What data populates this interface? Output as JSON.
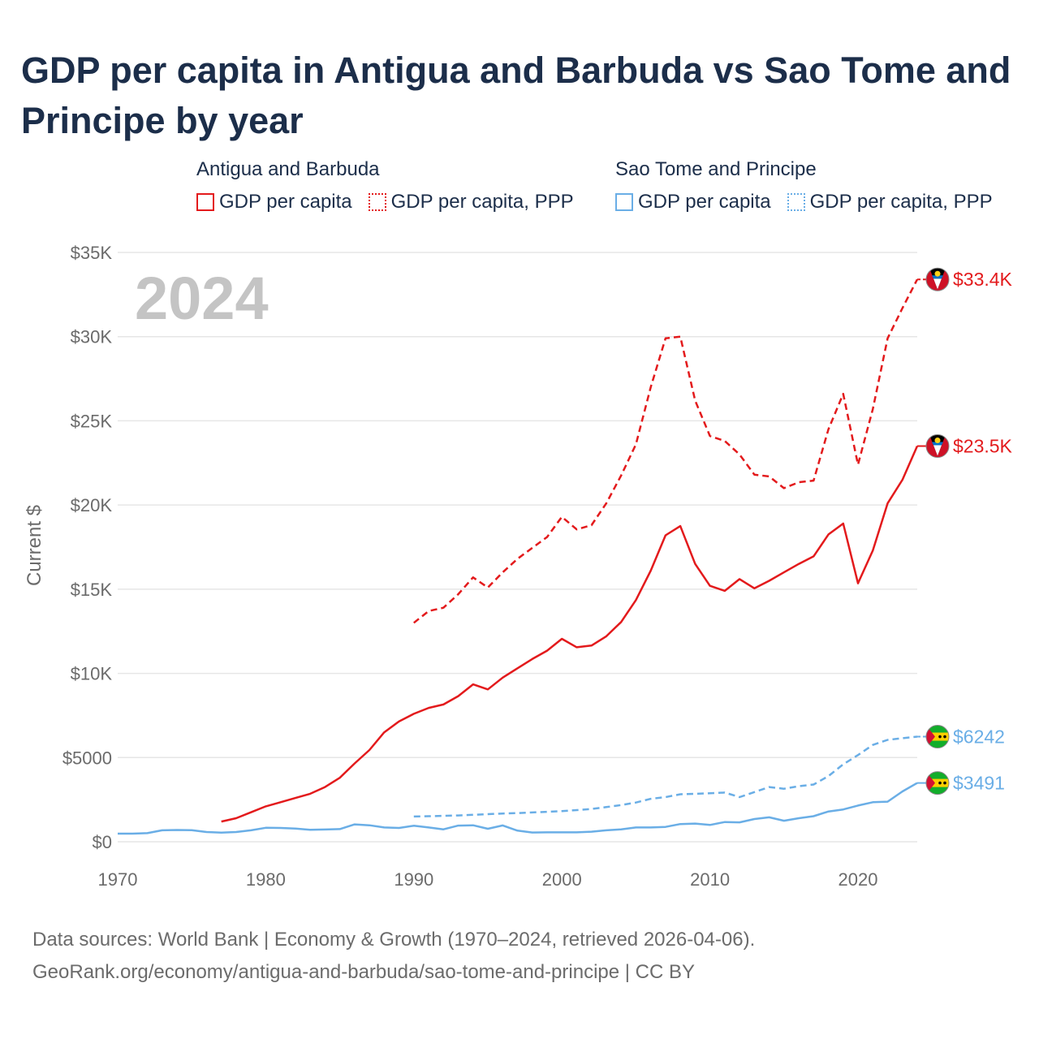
{
  "title": "GDP per capita in Antigua and Barbuda vs Sao Tome and Principe by year",
  "legend": [
    {
      "group": "Antigua and Barbuda",
      "items": [
        {
          "label": "GDP per capita",
          "style": "solid",
          "color": "#e31a1c"
        },
        {
          "label": "GDP per capita, PPP",
          "style": "dotted",
          "color": "#e31a1c"
        }
      ]
    },
    {
      "group": "Sao Tome and Principe",
      "items": [
        {
          "label": "GDP per capita",
          "style": "solid",
          "color": "#6aaee6"
        },
        {
          "label": "GDP per capita, PPP",
          "style": "dotted",
          "color": "#6aaee6"
        }
      ]
    }
  ],
  "footer": {
    "line1": "Data sources: World Bank | Economy & Growth (1970–2024, retrieved 2026-04-06).",
    "line2": "GeoRank.org/economy/antigua-and-barbuda/sao-tome-and-principe | CC BY"
  },
  "chart_data": {
    "type": "line",
    "title": "GDP per capita in Antigua and Barbuda vs Sao Tome and Principe by year",
    "ylabel": "Current $",
    "xlabel": "",
    "xlim": [
      1970,
      2024
    ],
    "ylim": [
      0,
      35000
    ],
    "year_label": "2024",
    "x_ticks": [
      1970,
      1980,
      1990,
      2000,
      2010,
      2020
    ],
    "y_ticks": [
      {
        "value": 0,
        "label": "$0"
      },
      {
        "value": 5000,
        "label": "$5000"
      },
      {
        "value": 10000,
        "label": "$10K"
      },
      {
        "value": 15000,
        "label": "$15K"
      },
      {
        "value": 20000,
        "label": "$20K"
      },
      {
        "value": 25000,
        "label": "$25K"
      },
      {
        "value": 30000,
        "label": "$30K"
      },
      {
        "value": 35000,
        "label": "$35K"
      }
    ],
    "series": [
      {
        "name": "Antigua and Barbuda GDP per capita",
        "country": "Antigua and Barbuda",
        "color": "#e31a1c",
        "dash": false,
        "end_label": "$23.5K",
        "x": [
          1977,
          1978,
          1979,
          1980,
          1981,
          1982,
          1983,
          1984,
          1985,
          1986,
          1987,
          1988,
          1989,
          1990,
          1991,
          1992,
          1993,
          1994,
          1995,
          1996,
          1997,
          1998,
          1999,
          2000,
          2001,
          2002,
          2003,
          2004,
          2005,
          2006,
          2007,
          2008,
          2009,
          2010,
          2011,
          2012,
          2013,
          2014,
          2015,
          2016,
          2017,
          2018,
          2019,
          2020,
          2021,
          2022,
          2023,
          2024
        ],
        "values": [
          1200,
          1400,
          1750,
          2100,
          2350,
          2600,
          2850,
          3250,
          3800,
          4650,
          5450,
          6500,
          7150,
          7600,
          7950,
          8150,
          8650,
          9350,
          9050,
          9750,
          10300,
          10850,
          11350,
          12050,
          11550,
          11650,
          12200,
          13050,
          14350,
          16100,
          18200,
          18750,
          16500,
          15200,
          14900,
          15600,
          15050,
          15500,
          16000,
          16500,
          16950,
          18250,
          18900,
          15350,
          17300,
          20100,
          21500,
          23500
        ]
      },
      {
        "name": "Antigua and Barbuda GDP per capita, PPP",
        "country": "Antigua and Barbuda",
        "color": "#e31a1c",
        "dash": true,
        "end_label": "$33.4K",
        "x": [
          1990,
          1991,
          1992,
          1993,
          1994,
          1995,
          1996,
          1997,
          1998,
          1999,
          2000,
          2001,
          2002,
          2003,
          2004,
          2005,
          2006,
          2007,
          2008,
          2009,
          2010,
          2011,
          2012,
          2013,
          2014,
          2015,
          2016,
          2017,
          2018,
          2019,
          2020,
          2021,
          2022,
          2023,
          2024
        ],
        "values": [
          13000,
          13700,
          13900,
          14700,
          15700,
          15100,
          16000,
          16800,
          17450,
          18100,
          19300,
          18550,
          18800,
          20100,
          21750,
          23600,
          27000,
          29900,
          30000,
          26200,
          24100,
          23800,
          23000,
          21800,
          21700,
          21000,
          21350,
          21450,
          24500,
          26600,
          22400,
          25700,
          29900,
          31700,
          33400
        ]
      },
      {
        "name": "Sao Tome and Principe GDP per capita",
        "country": "Sao Tome and Principe",
        "color": "#6aaee6",
        "dash": false,
        "end_label": "$3491",
        "x": [
          1970,
          1971,
          1972,
          1973,
          1974,
          1975,
          1976,
          1977,
          1978,
          1979,
          1980,
          1981,
          1982,
          1983,
          1984,
          1985,
          1986,
          1987,
          1988,
          1989,
          1990,
          1991,
          1992,
          1993,
          1994,
          1995,
          1996,
          1997,
          1998,
          1999,
          2000,
          2001,
          2002,
          2003,
          2004,
          2005,
          2006,
          2007,
          2008,
          2009,
          2010,
          2011,
          2012,
          2013,
          2014,
          2015,
          2016,
          2017,
          2018,
          2019,
          2020,
          2021,
          2022,
          2023,
          2024
        ],
        "values": [
          480,
          480,
          510,
          680,
          700,
          690,
          580,
          540,
          580,
          680,
          830,
          820,
          780,
          710,
          730,
          750,
          1030,
          980,
          850,
          820,
          950,
          850,
          740,
          960,
          980,
          770,
          970,
          660,
          550,
          560,
          560,
          560,
          600,
          680,
          740,
          850,
          850,
          880,
          1050,
          1080,
          1000,
          1170,
          1150,
          1350,
          1450,
          1250,
          1400,
          1520,
          1800,
          1920,
          2150,
          2350,
          2380,
          2990,
          3491
        ]
      },
      {
        "name": "Sao Tome and Principe GDP per capita, PPP",
        "country": "Sao Tome and Principe",
        "color": "#6aaee6",
        "dash": true,
        "end_label": "$6242",
        "x": [
          1990,
          1991,
          1992,
          1993,
          1994,
          1995,
          1996,
          1997,
          1998,
          1999,
          2000,
          2001,
          2002,
          2003,
          2004,
          2005,
          2006,
          2007,
          2008,
          2009,
          2010,
          2011,
          2012,
          2013,
          2014,
          2015,
          2016,
          2017,
          2018,
          2019,
          2020,
          2021,
          2022,
          2023,
          2024
        ],
        "values": [
          1500,
          1520,
          1540,
          1560,
          1600,
          1640,
          1680,
          1700,
          1740,
          1780,
          1820,
          1880,
          1950,
          2060,
          2180,
          2330,
          2550,
          2650,
          2820,
          2850,
          2880,
          2920,
          2650,
          2950,
          3250,
          3150,
          3300,
          3400,
          3900,
          4600,
          5150,
          5750,
          6050,
          6150,
          6242
        ]
      }
    ]
  }
}
